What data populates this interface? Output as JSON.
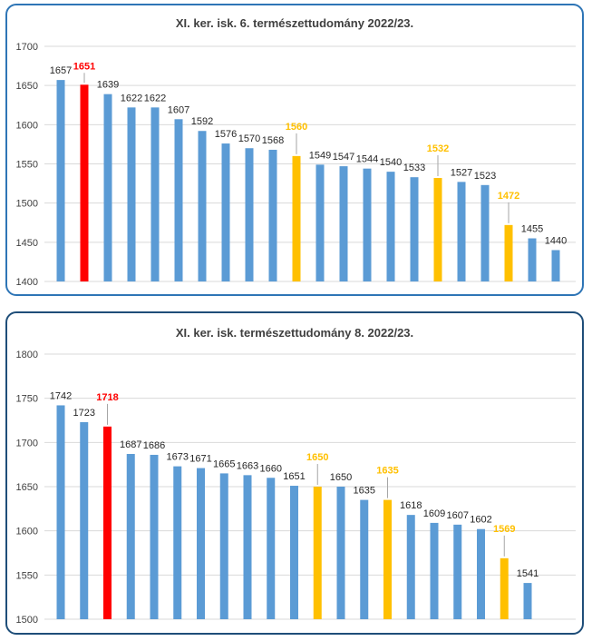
{
  "colors": {
    "bar_default": "#5b9bd5",
    "bar_highlight": "#ff0000",
    "bar_compare": "#ffc000",
    "gridline": "#d9d9d9",
    "tick_text": "#404040",
    "label_default": "#262626"
  },
  "chart_data": [
    {
      "type": "bar",
      "title": "XI. ker. isk. 6. természettudomány 2022/23.",
      "xlabel": "",
      "ylabel": "",
      "ylim": [
        1400,
        1700
      ],
      "yticks": [
        1400,
        1450,
        1500,
        1550,
        1600,
        1650,
        1700
      ],
      "grid": true,
      "legend": "none",
      "values": [
        1657,
        1651,
        1639,
        1622,
        1622,
        1607,
        1592,
        1576,
        1570,
        1568,
        1560,
        1549,
        1547,
        1544,
        1540,
        1533,
        1532,
        1527,
        1523,
        1472,
        1455,
        1440
      ],
      "bar_colors": [
        "default",
        "highlight",
        "default",
        "default",
        "default",
        "default",
        "default",
        "default",
        "default",
        "default",
        "compare",
        "default",
        "default",
        "default",
        "default",
        "default",
        "compare",
        "default",
        "default",
        "compare",
        "default",
        "default"
      ],
      "labels": [
        "1657",
        "1651",
        "1639",
        "1622",
        "1622",
        "1607",
        "1592",
        "1576",
        "1570",
        "1568",
        "1560",
        "1549",
        "1547",
        "1544",
        "1540",
        "1533",
        "1532",
        "1527",
        "1523",
        "1472",
        "1455",
        "1440"
      ]
    },
    {
      "type": "bar",
      "title": "XI. ker. isk. természettudomány 8. 2022/23.",
      "xlabel": "",
      "ylabel": "",
      "ylim": [
        1500,
        1800
      ],
      "yticks": [
        1500,
        1550,
        1600,
        1650,
        1700,
        1750,
        1800
      ],
      "grid": true,
      "legend": "none",
      "values": [
        1742,
        1723,
        1718,
        1687,
        1686,
        1673,
        1671,
        1665,
        1663,
        1660,
        1651,
        1650,
        1650,
        1635,
        1635,
        1618,
        1609,
        1607,
        1602,
        1569,
        1541
      ],
      "bar_colors": [
        "default",
        "default",
        "highlight",
        "default",
        "default",
        "default",
        "default",
        "default",
        "default",
        "default",
        "default",
        "compare",
        "default",
        "default",
        "compare",
        "default",
        "default",
        "default",
        "default",
        "compare",
        "default"
      ],
      "labels": [
        "1742",
        "1723",
        "1718",
        "1687",
        "1686",
        "1673",
        "1671",
        "1665",
        "1663",
        "1660",
        "1651",
        "1650",
        "1650",
        "1635",
        "1635",
        "1618",
        "1609",
        "1607",
        "1602",
        "1569",
        "1541"
      ]
    }
  ]
}
